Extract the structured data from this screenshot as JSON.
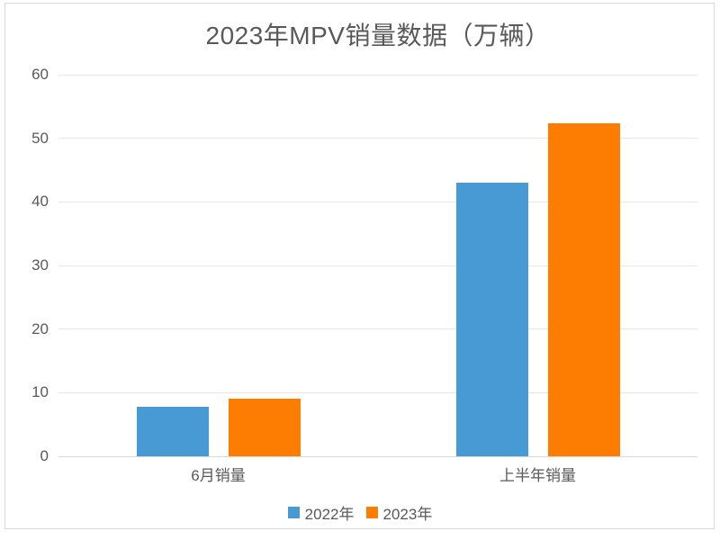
{
  "chart": {
    "title": "2023年MPV销量数据（万辆）"
  },
  "chart_data": {
    "type": "bar",
    "title": "2023年MPV销量数据（万辆）",
    "categories": [
      "6月销量",
      "上半年销量"
    ],
    "series": [
      {
        "name": "2022年",
        "color": "#489AD5",
        "values": [
          7.8,
          43.0
        ]
      },
      {
        "name": "2023年",
        "color": "#FC7D02",
        "values": [
          9.0,
          52.3
        ]
      }
    ],
    "xlabel": "",
    "ylabel": "",
    "ylim": [
      0,
      60
    ],
    "yticks": [
      0,
      10,
      20,
      30,
      40,
      50,
      60
    ],
    "grid": true,
    "legend_position": "bottom",
    "colors": {
      "background": "#ffffff",
      "frame_border": "#d9d9d9",
      "gridline": "#e6e6e6",
      "baseline": "#d9d9d9",
      "text": "#595959"
    }
  }
}
